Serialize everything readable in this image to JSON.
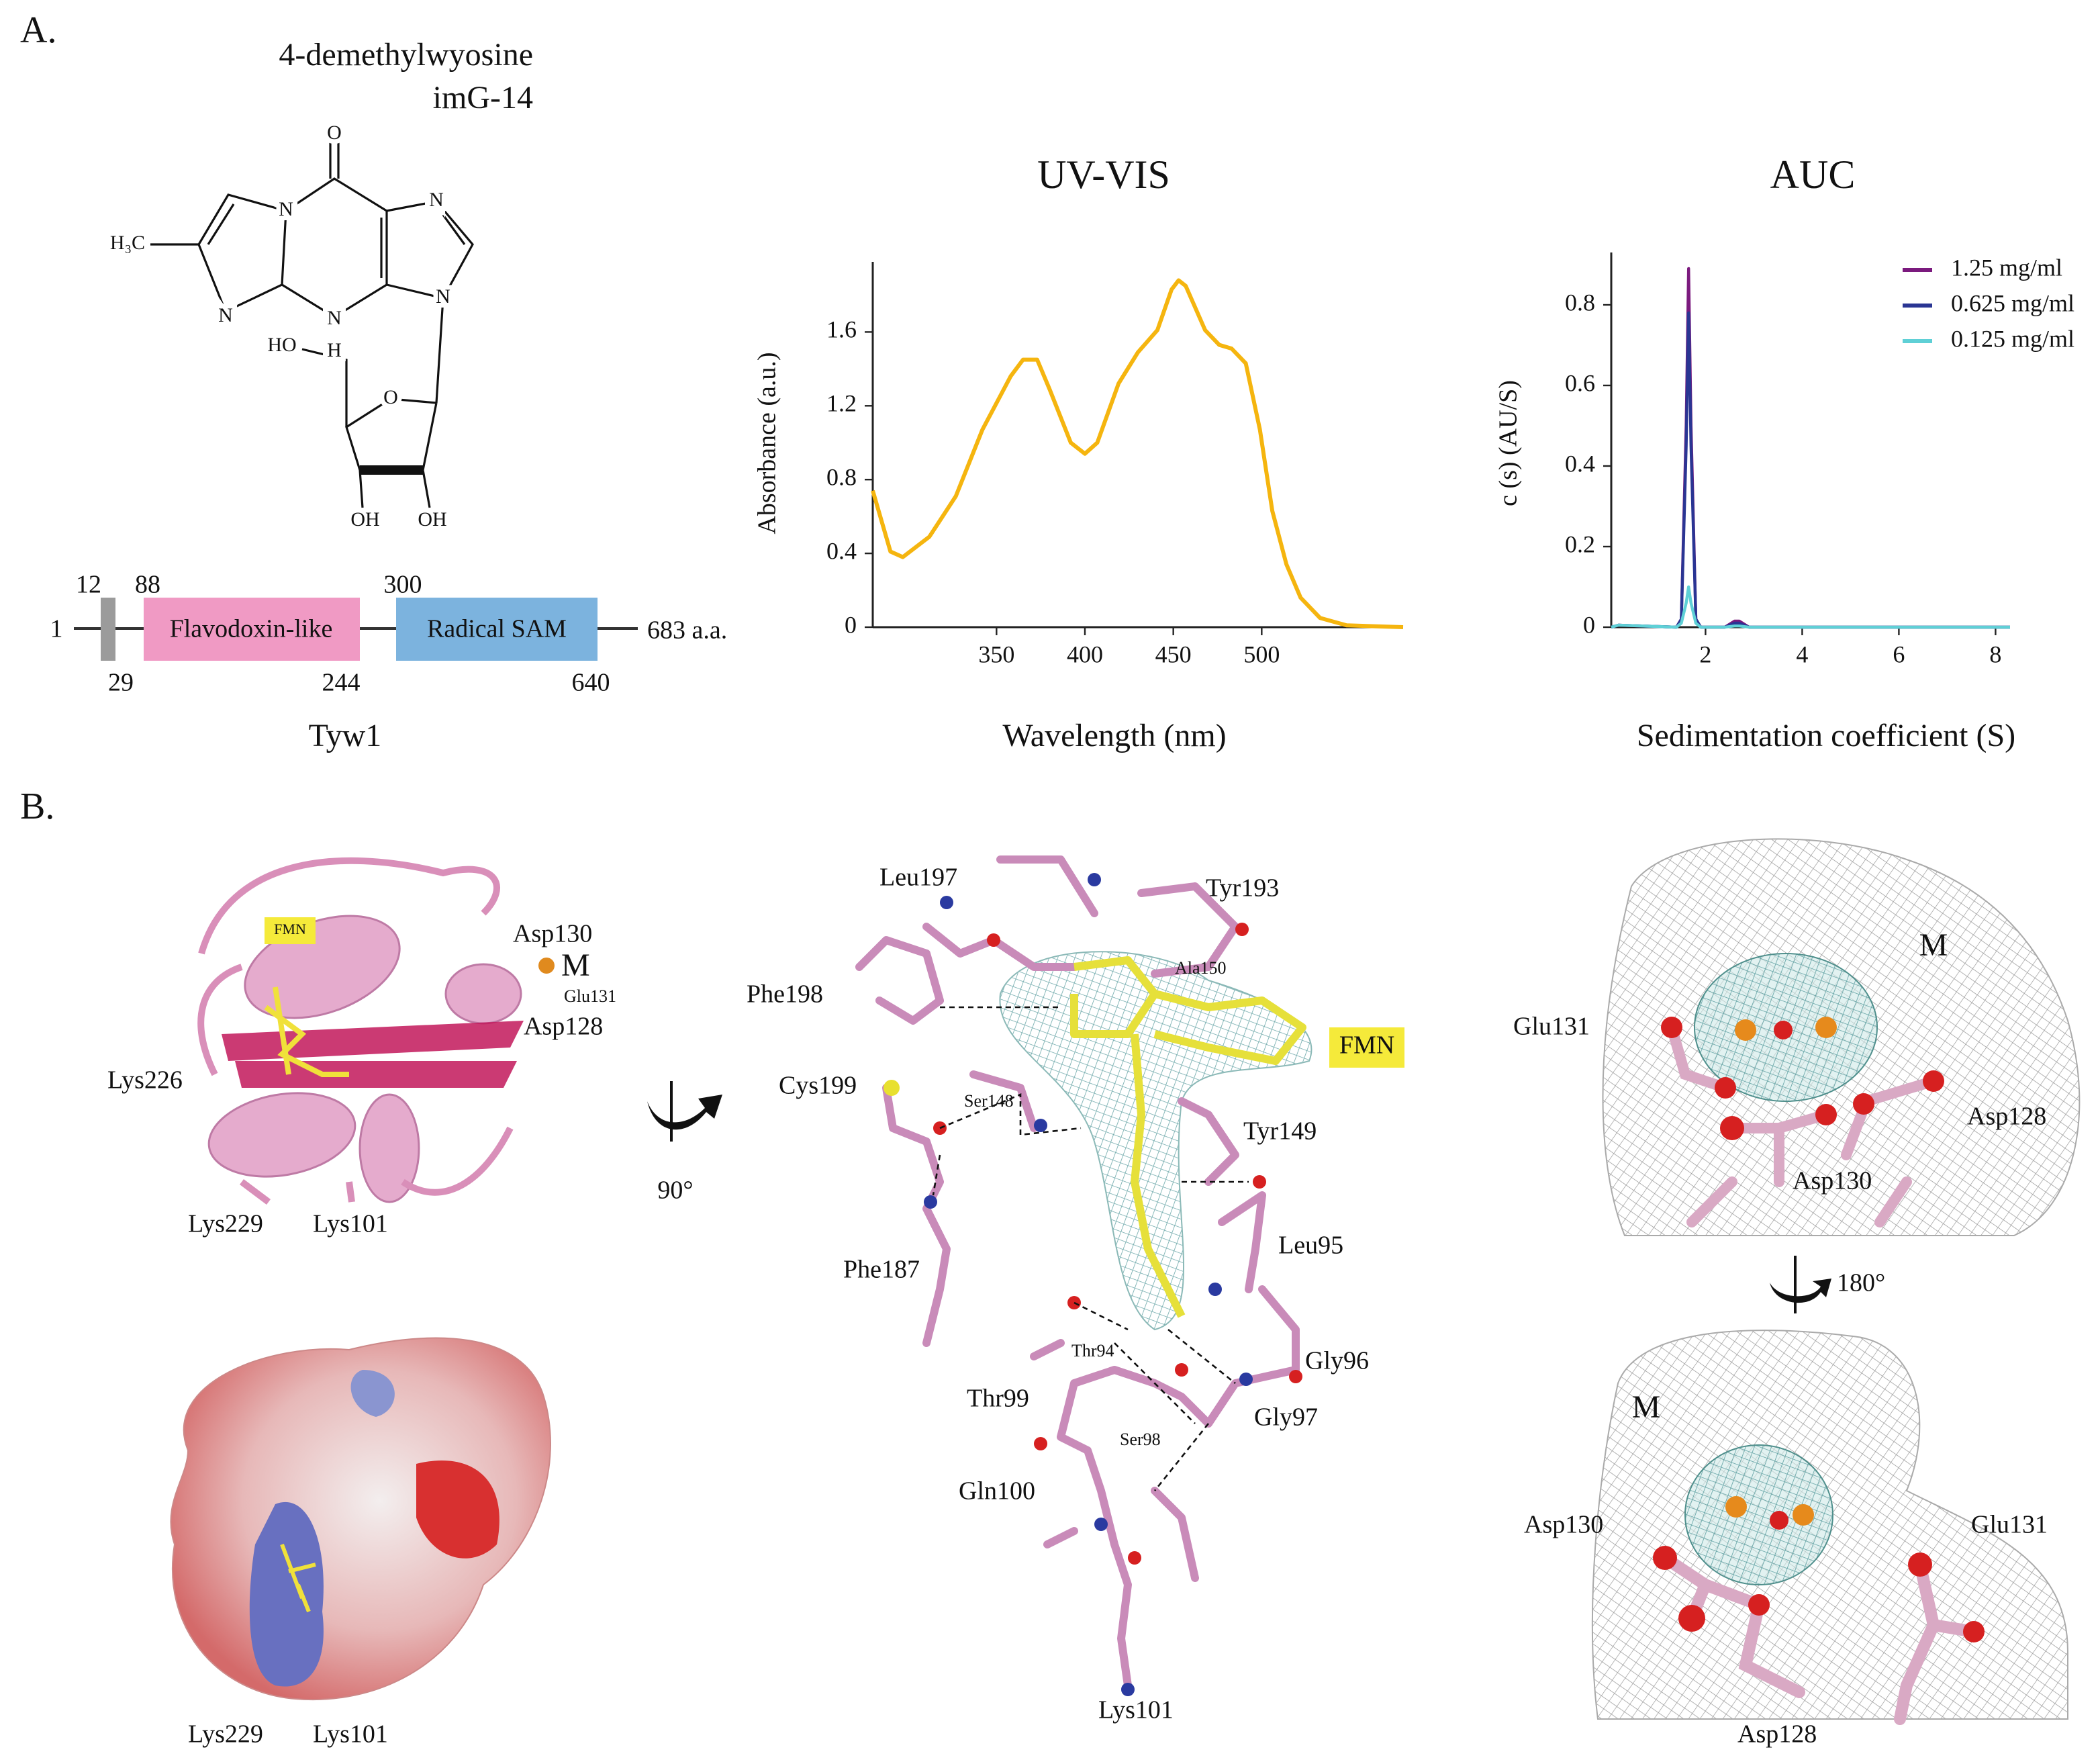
{
  "panel_a": {
    "label": "A.",
    "molecule": {
      "name": "4-demethylwyosine",
      "code": "imG-14",
      "atoms": [
        "O",
        "N",
        "N",
        "N",
        "N",
        "H",
        "N",
        "H₃C",
        "HO",
        "O",
        "OH",
        "OH"
      ]
    },
    "domain_map": {
      "protein": "Tyw1",
      "start": "1",
      "end": "683 a.a.",
      "segment": {
        "start": "12",
        "end": "29"
      },
      "domains": [
        {
          "name": "Flavodoxin-like",
          "start": "88",
          "end": "244"
        },
        {
          "name": "Radical SAM",
          "start": "300",
          "end": "640"
        }
      ]
    }
  },
  "chart_data": [
    {
      "type": "line",
      "title": "UV-VIS",
      "x_label": "Wavelength (nm)",
      "y_label": "Absorbance (a.u.)",
      "x": [
        280,
        290,
        297,
        312,
        327,
        342,
        358,
        365,
        373,
        380,
        392,
        400,
        407,
        419,
        430,
        441,
        449,
        453,
        457,
        468,
        476,
        483,
        491,
        499,
        506,
        514,
        522,
        533,
        548,
        580
      ],
      "values": [
        0.74,
        0.41,
        0.38,
        0.49,
        0.71,
        1.07,
        1.36,
        1.45,
        1.45,
        1.29,
        1.0,
        0.94,
        1.0,
        1.32,
        1.49,
        1.61,
        1.83,
        1.88,
        1.85,
        1.61,
        1.53,
        1.51,
        1.43,
        1.07,
        0.63,
        0.34,
        0.16,
        0.05,
        0.01,
        0
      ],
      "color": "#f5b50f",
      "xlim": [
        280,
        580
      ],
      "ylim": [
        0,
        1.98
      ],
      "xticks": [
        350,
        400,
        450,
        500
      ],
      "yticks": [
        0,
        0.4,
        0.8,
        1.2,
        1.6
      ]
    },
    {
      "type": "line",
      "title": "AUC",
      "x_label": "Sedimentation coefficient (S)",
      "y_label": "c (s) (AU/S)",
      "x": [
        0.05,
        0.2,
        1.4,
        1.5,
        1.6,
        1.65,
        1.7,
        1.8,
        1.9,
        2.4,
        2.6,
        2.7,
        2.9,
        4,
        6,
        8.3
      ],
      "series": [
        {
          "name": "1.25 mg/ml",
          "color": "#7b1a7e",
          "values": [
            0,
            0.005,
            0,
            0.02,
            0.5,
            0.89,
            0.5,
            0.02,
            0,
            0,
            0.015,
            0.015,
            0,
            0,
            0,
            0
          ]
        },
        {
          "name": "0.625 mg/ml",
          "color": "#2a3593",
          "values": [
            0,
            0.005,
            0,
            0.02,
            0.45,
            0.78,
            0.45,
            0.02,
            0,
            0,
            0.01,
            0.01,
            0,
            0,
            0,
            0
          ]
        },
        {
          "name": "0.125 mg/ml",
          "color": "#5fd0d6",
          "values": [
            0,
            0.005,
            0,
            0.01,
            0.06,
            0.1,
            0.06,
            0.01,
            0,
            0,
            0.003,
            0.003,
            0,
            0,
            0,
            0
          ]
        }
      ],
      "xlim": [
        0.05,
        8.3
      ],
      "ylim": [
        0,
        0.93
      ],
      "xticks": [
        2,
        4,
        6,
        8
      ],
      "yticks": [
        0,
        0.2,
        0.4,
        0.6,
        0.8
      ],
      "legend": "upper right"
    }
  ],
  "panel_b": {
    "label": "B.",
    "cartoon": {
      "labels": [
        "FMN",
        "Asp130",
        "M",
        "Glu131",
        "Asp128",
        "Lys226",
        "Lys229",
        "Lys101"
      ]
    },
    "surface": {
      "labels": [
        "Lys229",
        "Lys101"
      ]
    },
    "rotation_1": "90°",
    "active_site": {
      "labels": [
        "Leu197",
        "Tyr193",
        "Ala150",
        "Phe198",
        "FMN",
        "Cys199",
        "Ser148",
        "Tyr149",
        "Leu95",
        "Phe187",
        "Thr94",
        "Gly96",
        "Thr99",
        "Gly97",
        "Ser98",
        "Gln100",
        "Lys101"
      ]
    },
    "metal_site_top": {
      "labels": [
        "M",
        "Glu131",
        "Asp128",
        "Asp130"
      ]
    },
    "rotation_2": "180°",
    "metal_site_bottom": {
      "labels": [
        "M",
        "Asp130",
        "Glu131",
        "Asp128"
      ]
    }
  }
}
